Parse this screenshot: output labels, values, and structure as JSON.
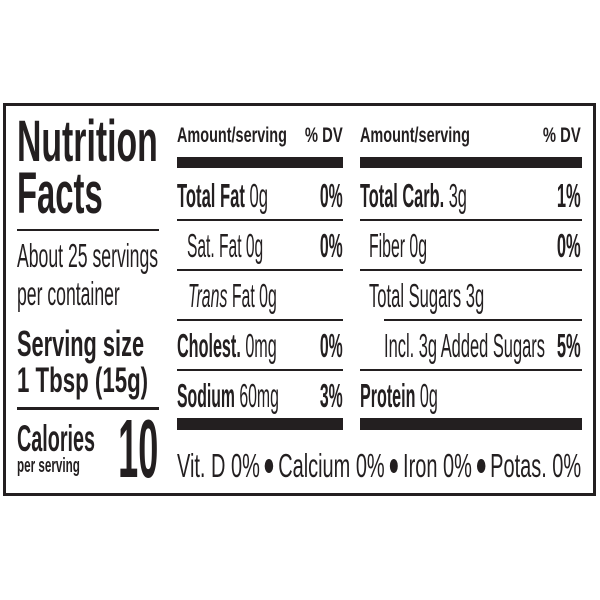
{
  "label": {
    "title_line1": "Nutrition",
    "title_line2": "Facts",
    "servings_line1": "About 25 servings",
    "servings_line2": "per container",
    "serving_size_label": "Serving size",
    "serving_size_value": "1 Tbsp (15g)",
    "calories_label": "Calories",
    "calories_sub": "per serving",
    "calories_value": "10"
  },
  "columns": {
    "left_header": {
      "amount": "Amount/serving",
      "dv": "% DV"
    },
    "right_header": {
      "amount": "Amount/serving",
      "dv": "% DV"
    },
    "left_rows": [
      {
        "name": "Total Fat",
        "amount": "0g",
        "dv": "0%"
      },
      {
        "name": "Sat. Fat",
        "amount": "0g",
        "dv": "0%"
      },
      {
        "name": "Trans",
        "amount": "Fat 0g",
        "dv": ""
      },
      {
        "name": "Cholest.",
        "amount": "0mg",
        "dv": "0%"
      },
      {
        "name": "Sodium",
        "amount": "60mg",
        "dv": "3%"
      }
    ],
    "right_rows": [
      {
        "name": "Total Carb.",
        "amount": "3g",
        "dv": "1%"
      },
      {
        "name": "Fiber",
        "amount": "0g",
        "dv": "0%"
      },
      {
        "name": "Total Sugars",
        "amount": "3g",
        "dv": ""
      },
      {
        "name": "Incl. 3g Added Sugars",
        "amount": "",
        "dv": "5%"
      },
      {
        "name": "Protein",
        "amount": "0g",
        "dv": ""
      }
    ]
  },
  "vitamins": [
    "Vit. D 0%",
    "Calcium 0%",
    "Iron 0%",
    "Potas. 0%"
  ],
  "colors": {
    "ink": "#231f20",
    "background": "#ffffff"
  }
}
